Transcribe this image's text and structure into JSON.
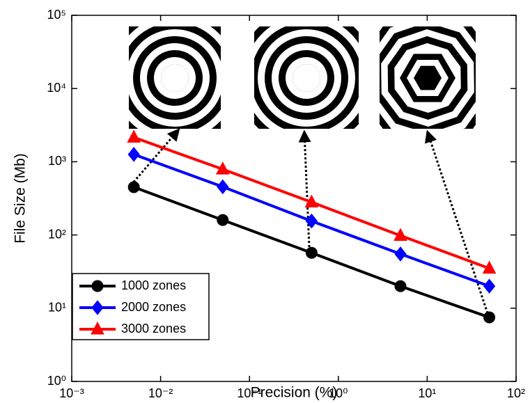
{
  "chart_data": {
    "type": "line",
    "xlabel": "Precision (%)",
    "ylabel": "File Size (Mb)",
    "x": [
      0.005,
      0.05,
      0.5,
      5,
      50
    ],
    "xlog": true,
    "ylog": true,
    "xlim": [
      0.001,
      100
    ],
    "ylim": [
      1,
      100000
    ],
    "xticks": [
      {
        "value": 0.001,
        "label": "10⁻³"
      },
      {
        "value": 0.01,
        "label": "10⁻²"
      },
      {
        "value": 0.1,
        "label": "10⁻¹"
      },
      {
        "value": 1,
        "label": "10⁰"
      },
      {
        "value": 10,
        "label": "10¹"
      },
      {
        "value": 100,
        "label": "10²"
      }
    ],
    "yticks": [
      {
        "value": 1,
        "label": "10⁰"
      },
      {
        "value": 10,
        "label": "10¹"
      },
      {
        "value": 100,
        "label": "10²"
      },
      {
        "value": 1000,
        "label": "10³"
      },
      {
        "value": 10000,
        "label": "10⁴"
      },
      {
        "value": 100000,
        "label": "10⁵"
      }
    ],
    "legend": "lower left",
    "series": [
      {
        "name": "1000 zones",
        "color": "#000000",
        "marker": "circle",
        "values": [
          450,
          160,
          57,
          20,
          7.5
        ]
      },
      {
        "name": "2000 zones",
        "color": "#0000ff",
        "marker": "diamond",
        "values": [
          1260,
          455,
          155,
          55,
          20
        ]
      },
      {
        "name": "3000 zones",
        "color": "#ff0000",
        "marker": "triangle",
        "values": [
          2150,
          790,
          280,
          98,
          35
        ]
      }
    ]
  }
}
